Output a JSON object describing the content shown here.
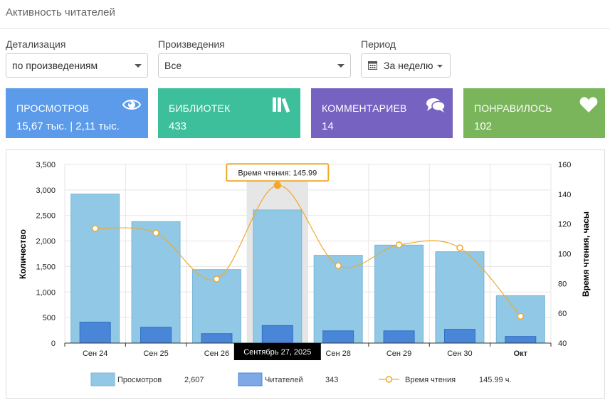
{
  "page": {
    "title": "Активность читателей"
  },
  "filters": {
    "detail": {
      "label": "Детализация",
      "value": "по произведениям"
    },
    "works": {
      "label": "Произведения",
      "value": "Все"
    },
    "period": {
      "label": "Период",
      "value": "За неделю"
    }
  },
  "cards": [
    {
      "title": "ПРОСМОТРОВ",
      "value": "15,67 тыс. | 2,11 тыс.",
      "color": "#5b9bea",
      "icon": "eye-icon"
    },
    {
      "title": "БИБЛИОТЕК",
      "value": "433",
      "color": "#3cbf9a",
      "icon": "books-icon"
    },
    {
      "title": "КОММЕНТАРИЕВ",
      "value": "14",
      "color": "#7662c1",
      "icon": "comments-icon"
    },
    {
      "title": "ПОНРАВИЛОСЬ",
      "value": "102",
      "color": "#7ab55c",
      "icon": "heart-icon"
    }
  ],
  "chart_data": {
    "type": "bar",
    "categories": [
      "Сен 24",
      "Сен 25",
      "Сен 26",
      "Сен 27",
      "Сен 28",
      "Сен 29",
      "Сен 30",
      "Окт"
    ],
    "series": [
      {
        "name": "Просмотров",
        "type": "bar",
        "axis": "left",
        "color": "#90c8e6",
        "values": [
          2920,
          2380,
          1440,
          2607,
          1720,
          1920,
          1790,
          930
        ]
      },
      {
        "name": "Читателей",
        "type": "bar",
        "axis": "left",
        "color": "#4a86d8",
        "values": [
          410,
          310,
          185,
          343,
          240,
          240,
          270,
          130
        ]
      },
      {
        "name": "Время чтения",
        "type": "line",
        "axis": "right",
        "color": "#f0a92e",
        "values": [
          117,
          114,
          83,
          145.99,
          92,
          106,
          104,
          58
        ]
      }
    ],
    "ylabel": "Количество",
    "y2label": "Время чтения, часы",
    "ylim": [
      0,
      3500
    ],
    "y2lim": [
      40,
      160
    ],
    "yticks": [
      "0",
      "500",
      "1,000",
      "1,500",
      "2,000",
      "2,500",
      "3,000",
      "3,500"
    ],
    "y2ticks": [
      "40",
      "60",
      "80",
      "100",
      "120",
      "140",
      "160"
    ],
    "highlight_index": 3,
    "tooltip": "Время чтения: 145.99",
    "crosshair_label": "Сентябрь 27, 2025",
    "legend": [
      {
        "name": "Просмотров",
        "value": "2,607"
      },
      {
        "name": "Читателей",
        "value": "343"
      },
      {
        "name": "Время чтения",
        "value": "145.99 ч."
      }
    ],
    "grid": true,
    "legend_position": "bottom"
  }
}
